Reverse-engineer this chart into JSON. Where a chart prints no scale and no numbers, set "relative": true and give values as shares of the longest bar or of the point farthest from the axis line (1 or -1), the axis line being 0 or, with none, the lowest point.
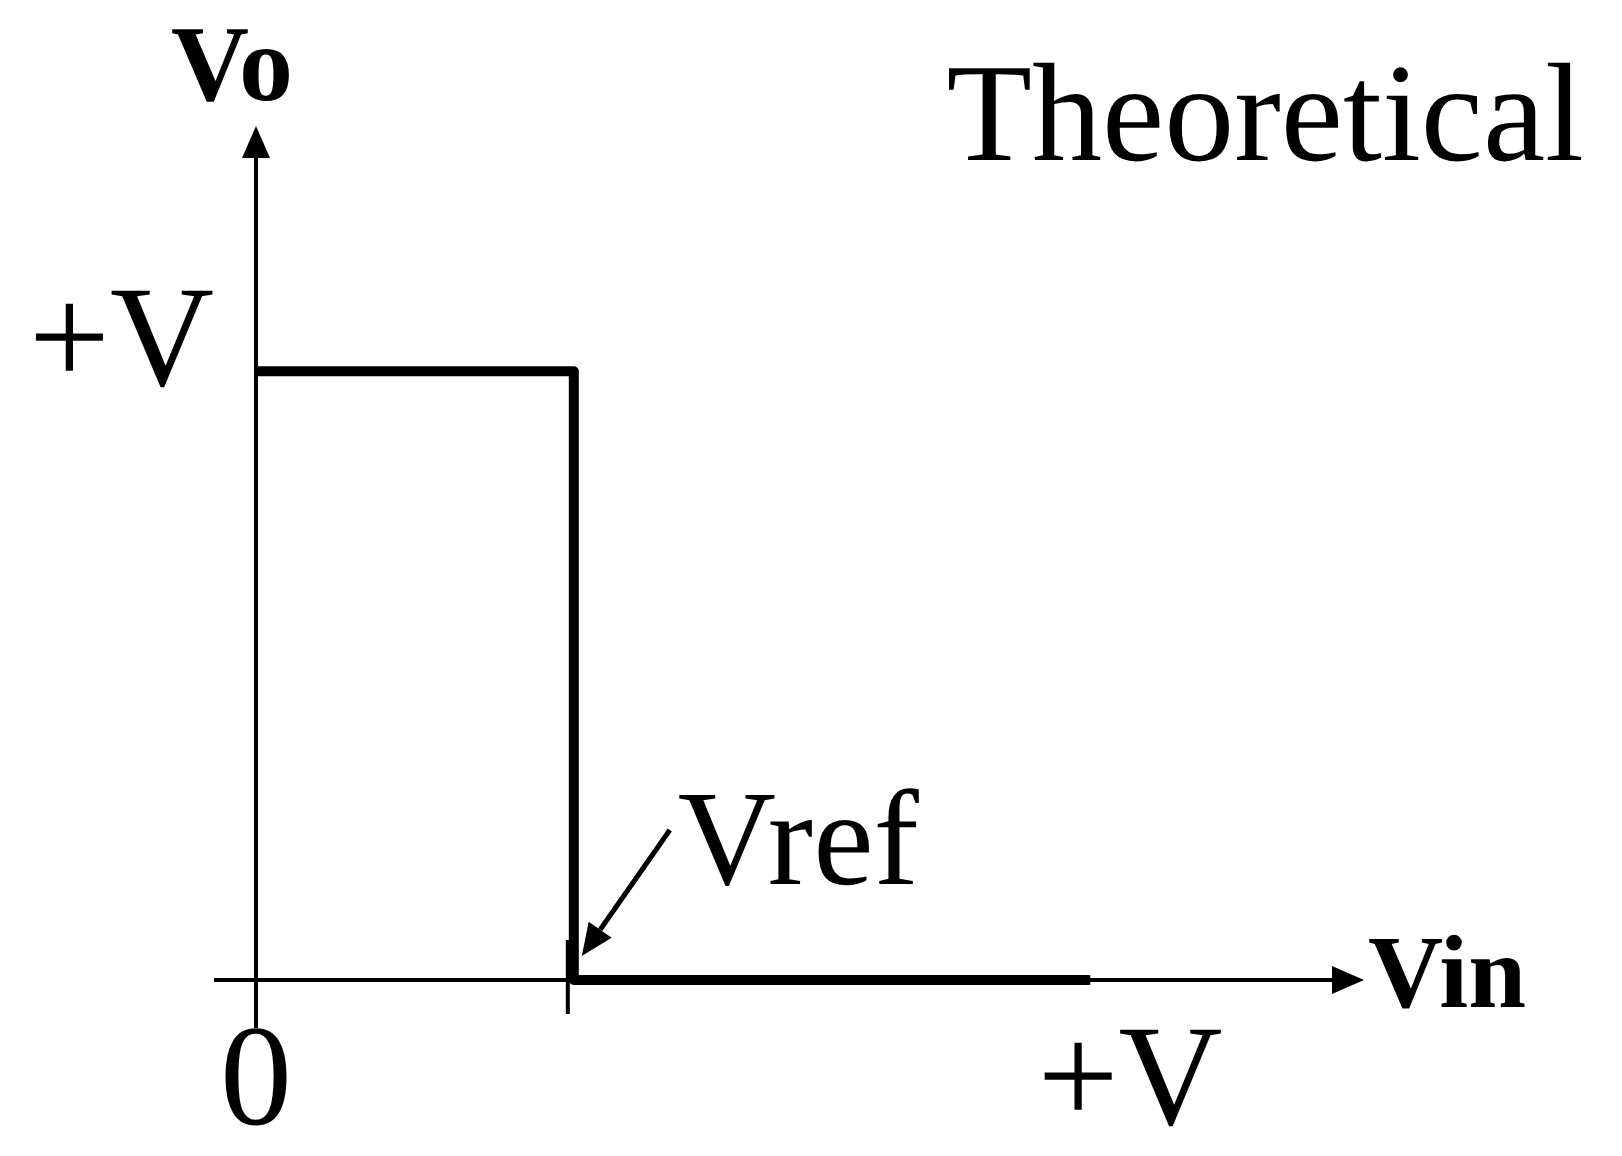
{
  "chart_data": {
    "type": "step",
    "title": "Theoretical",
    "xlabel": "Vin",
    "ylabel": "Vo",
    "relative": true,
    "categories": [
      "0",
      null,
      null,
      null,
      null,
      null,
      null,
      null,
      null,
      null,
      null,
      null,
      null,
      null,
      null,
      null,
      null,
      null,
      null,
      null,
      null,
      null,
      "+V"
    ],
    "values": [
      1,
      1,
      1,
      1,
      1,
      1,
      1,
      1,
      0,
      0,
      0,
      0,
      0,
      0,
      0,
      0,
      0,
      0,
      0,
      0,
      0,
      0,
      null
    ],
    "color": "#000000",
    "annotations": [
      "+V",
      "Vref"
    ]
  }
}
